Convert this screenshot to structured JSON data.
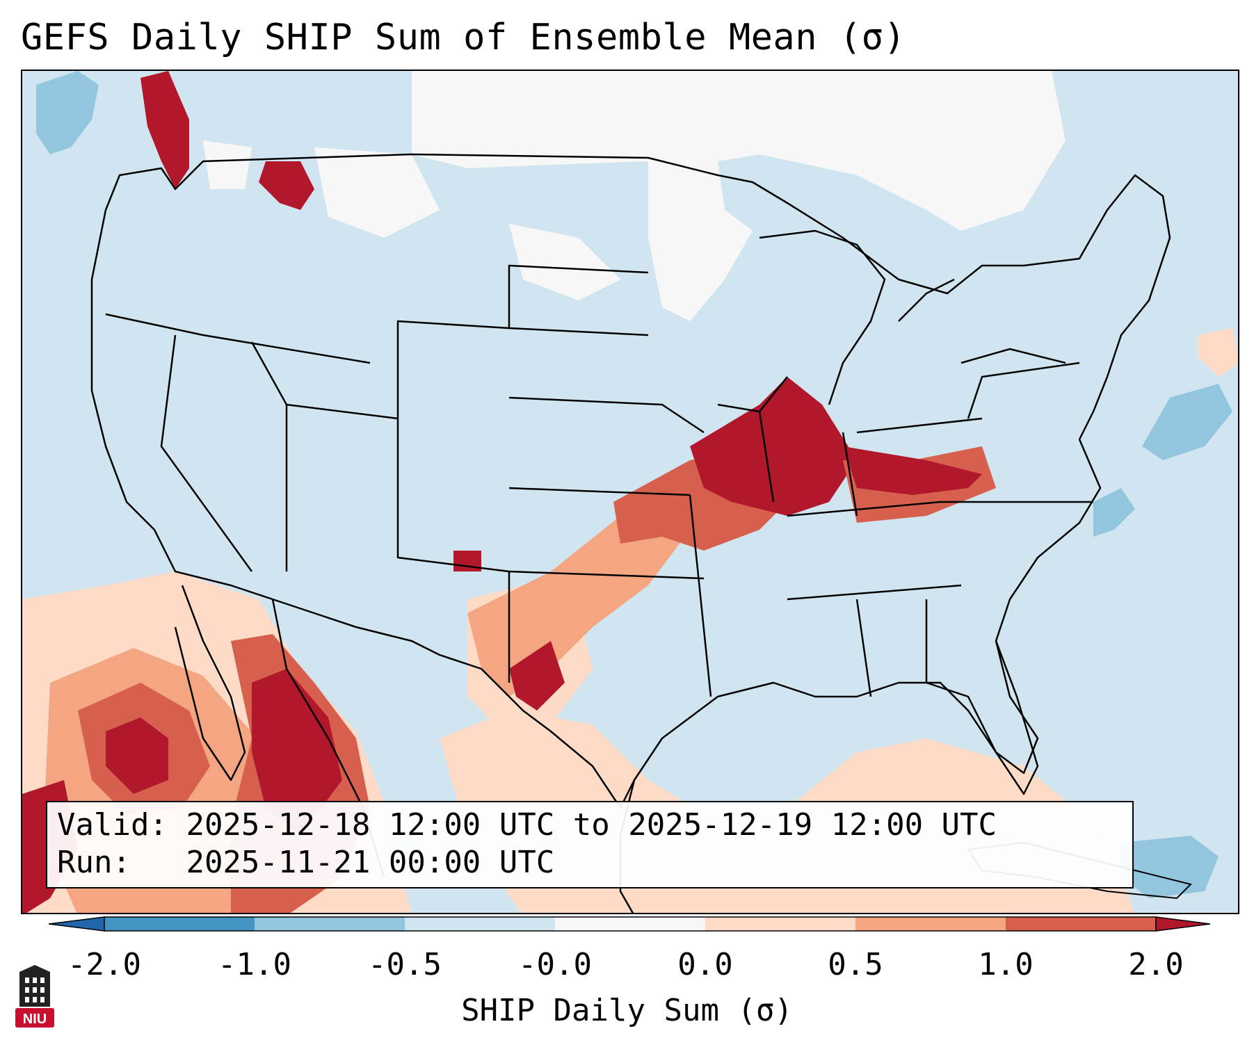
{
  "title": "GEFS Daily SHIP Sum of Ensemble Mean (σ)",
  "info_box": {
    "valid_label": "Valid:",
    "valid_value": "2025-12-18 12:00 UTC to 2025-12-19 12:00 UTC",
    "run_label": "Run:",
    "run_value": "2025-11-21 00:00 UTC"
  },
  "colorbar": {
    "label": "SHIP Daily Sum (σ)",
    "ticks": [
      "-2.0",
      "-1.0",
      "-0.5",
      "-0.0",
      "0.0",
      "0.5",
      "1.0",
      "2.0"
    ],
    "colors": {
      "under": "#2166ac",
      "b1": "#4393c3",
      "b2": "#92c5de",
      "b3": "#d1e5f0",
      "b4": "#f7f7f7",
      "b5": "#fddbc7",
      "b6": "#f4a582",
      "b7": "#d6604d",
      "over": "#b2182b"
    }
  },
  "logo": {
    "text": "NIU",
    "color": "#c8102e"
  },
  "map": {
    "region": "Contiguous United States",
    "base_color": "#d1e5f0"
  }
}
